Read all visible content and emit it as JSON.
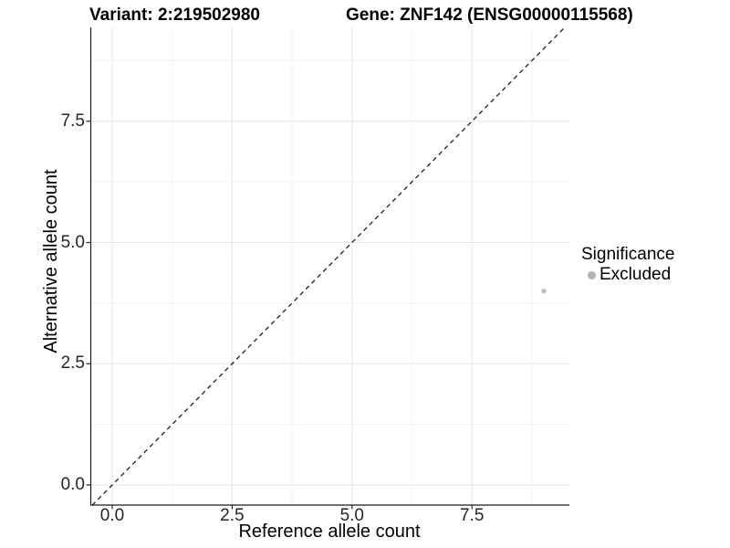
{
  "header": {
    "variant_title": "Variant: 2:219502980",
    "gene_title": "Gene: ZNF142 (ENSG00000115568)"
  },
  "chart_data": {
    "type": "scatter",
    "title_left": "Variant: 2:219502980",
    "title_right": "Gene: ZNF142 (ENSG00000115568)",
    "xlabel": "Reference allele count",
    "ylabel": "Alternative allele count",
    "xlim": [
      -0.46,
      9.53
    ],
    "ylim": [
      -0.42,
      9.45
    ],
    "x_ticks": [
      0,
      2.5,
      5,
      7.5
    ],
    "y_ticks": [
      0,
      2.5,
      5,
      7.5
    ],
    "x_tick_labels": [
      "0.0",
      "2.5",
      "5.0",
      "7.5"
    ],
    "y_tick_labels": [
      "0.0",
      "2.5",
      "5.0",
      "7.5"
    ],
    "x_minor_ticks": [
      1.25,
      3.75,
      6.25,
      8.75
    ],
    "y_minor_ticks": [
      1.25,
      3.75,
      6.25,
      8.75
    ],
    "grid": true,
    "legend_position": "right",
    "identity_line": {
      "style": "dashed",
      "from": -0.42,
      "to": 9.42,
      "color": "#1f1f1f"
    },
    "points": [
      {
        "x": 9,
        "y": 4,
        "series": "Excluded",
        "color": "#bdbdbd"
      }
    ],
    "legend": {
      "title": "Significance",
      "entries": [
        {
          "label": "Excluded",
          "color": "#b3b3b3",
          "marker": "circle"
        }
      ]
    }
  },
  "colors": {
    "background": "#ffffff",
    "grid_major": "#e7e7e7",
    "grid_minor": "#f3f3f3",
    "axis_line": "#1a1a1a",
    "tick_mark": "#2b2b2b",
    "point": "#bdbdbd"
  }
}
